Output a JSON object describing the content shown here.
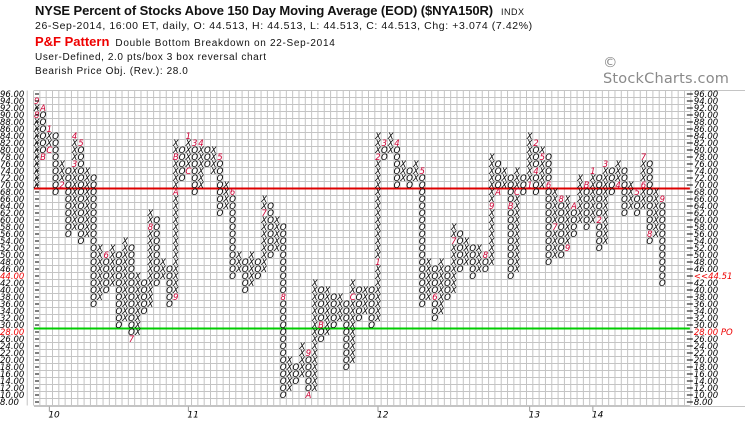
{
  "header": {
    "title": "NYSE Percent of Stocks Above 150 Day Moving Average (EOD) ($NYA150R)",
    "index_tag": "INDX",
    "ohlc_line": "26-Sep-2014, 16:00 ET, daily, O: 44.513, H: 44.513, L: 44.513, C: 44.513, Chg: +3.074 (7.42%)",
    "pattern_label": "P&F Pattern",
    "pattern_text": "Double Bottom Breakdown on 22-Sep-2014",
    "user_defined": "User-Defined, 2.0 pts/box 3 box reversal chart",
    "price_objective": "Bearish Price Obj. (Rev.): 28.0"
  },
  "watermark": "© StockCharts.com",
  "chart_data": {
    "type": "point-and-figure",
    "box_size": 2,
    "reversal": 3,
    "ylim": [
      8,
      96
    ],
    "y_tick_step": 2,
    "grid": true,
    "colors": {
      "x": "#000000",
      "o": "#000000",
      "month_label": "#cc0033",
      "grid": "#c4c4c4",
      "resistance_line": "#dd0000",
      "objective_line": "#00cc00",
      "annotation": "#ee0000"
    },
    "horizontal_lines": [
      {
        "value": 69,
        "color": "#dd0000"
      },
      {
        "value": 29,
        "color": "#00cc00"
      }
    ],
    "annotations": {
      "left": [
        {
          "value": 44,
          "text": "44.00"
        },
        {
          "value": 28,
          "text": "28.00"
        }
      ],
      "right": [
        {
          "value": 44.51,
          "text": "<<44.51"
        },
        {
          "value": 28,
          "text": "28.00 PO"
        }
      ]
    },
    "x_labels": [
      {
        "column": 2,
        "text": "10"
      },
      {
        "column": 24,
        "text": "11"
      },
      {
        "column": 54,
        "text": "12"
      },
      {
        "column": 78,
        "text": "13"
      },
      {
        "column": 88,
        "text": "14"
      }
    ],
    "columns": [
      [
        "X",
        70,
        94,
        {
          "94": "9",
          "90": "8"
        }
      ],
      [
        "O",
        78,
        92,
        {
          "92": "A",
          "78": "B"
        }
      ],
      [
        "X",
        80,
        86,
        {
          "80": "C",
          "86": "1"
        }
      ],
      [
        "O",
        68,
        84,
        {}
      ],
      [
        "X",
        70,
        76,
        {
          "70": "2"
        }
      ],
      [
        "O",
        56,
        74,
        {}
      ],
      [
        "X",
        58,
        84,
        {
          "76": "3",
          "84": "4"
        }
      ],
      [
        "O",
        54,
        82,
        {
          "82": "5"
        }
      ],
      [
        "X",
        56,
        74,
        {}
      ],
      [
        "O",
        36,
        72,
        {}
      ],
      [
        "X",
        38,
        52,
        {}
      ],
      [
        "O",
        40,
        50,
        {
          "50": "6"
        }
      ],
      [
        "X",
        42,
        52,
        {}
      ],
      [
        "O",
        30,
        50,
        {}
      ],
      [
        "X",
        32,
        54,
        {}
      ],
      [
        "O",
        26,
        52,
        {
          "26": "7"
        }
      ],
      [
        "X",
        28,
        44,
        {}
      ],
      [
        "O",
        34,
        42,
        {}
      ],
      [
        "X",
        36,
        62,
        {
          "58": "8"
        }
      ],
      [
        "O",
        42,
        60,
        {}
      ],
      [
        "X",
        44,
        48,
        {}
      ],
      [
        "O",
        36,
        46,
        {}
      ],
      [
        "X",
        38,
        82,
        {
          "38": "9",
          "68": "A",
          "78": "B"
        }
      ],
      [
        "O",
        72,
        80,
        {}
      ],
      [
        "X",
        74,
        84,
        {
          "74": "C",
          "84": "1"
        }
      ],
      [
        "O",
        68,
        82,
        {
          "82": "3"
        }
      ],
      [
        "X",
        70,
        82,
        {
          "82": "4"
        }
      ],
      [
        "O",
        76,
        80,
        {}
      ],
      [
        "X",
        74,
        80,
        {}
      ],
      [
        "O",
        62,
        78,
        {
          "78": "5"
        }
      ],
      [
        "X",
        64,
        70,
        {}
      ],
      [
        "O",
        44,
        68,
        {
          "68": "6"
        }
      ],
      [
        "X",
        46,
        50,
        {}
      ],
      [
        "O",
        40,
        48,
        {}
      ],
      [
        "X",
        42,
        50,
        {}
      ],
      [
        "O",
        44,
        48,
        {}
      ],
      [
        "X",
        46,
        66,
        {
          "62": "7"
        }
      ],
      [
        "O",
        50,
        64,
        {}
      ],
      [
        "X",
        52,
        60,
        {}
      ],
      [
        "O",
        10,
        58,
        {
          "38": "8"
        }
      ],
      [
        "X",
        12,
        20,
        {}
      ],
      [
        "O",
        14,
        18,
        {}
      ],
      [
        "X",
        16,
        24,
        {}
      ],
      [
        "O",
        10,
        22,
        {
          "22": "9",
          "10": "A"
        }
      ],
      [
        "X",
        12,
        42,
        {}
      ],
      [
        "O",
        26,
        40,
        {
          "30": "B"
        }
      ],
      [
        "X",
        28,
        40,
        {}
      ],
      [
        "O",
        30,
        38,
        {}
      ],
      [
        "X",
        32,
        38,
        {}
      ],
      [
        "O",
        18,
        36,
        {}
      ],
      [
        "X",
        20,
        42,
        {
          "38": "C"
        }
      ],
      [
        "O",
        32,
        40,
        {}
      ],
      [
        "X",
        34,
        40,
        {}
      ],
      [
        "O",
        30,
        40,
        {}
      ],
      [
        "X",
        32,
        84,
        {
          "48": "1",
          "78": "2"
        }
      ],
      [
        "O",
        78,
        82,
        {
          "82": "3"
        }
      ],
      [
        "X",
        80,
        84,
        {}
      ],
      [
        "O",
        70,
        82,
        {
          "82": "4"
        }
      ],
      [
        "X",
        72,
        76,
        {}
      ],
      [
        "O",
        70,
        74,
        {}
      ],
      [
        "X",
        72,
        76,
        {}
      ],
      [
        "O",
        36,
        74,
        {
          "74": "5"
        }
      ],
      [
        "X",
        38,
        48,
        {}
      ],
      [
        "O",
        32,
        46,
        {
          "38": "6"
        }
      ],
      [
        "X",
        34,
        48,
        {}
      ],
      [
        "O",
        38,
        46,
        {}
      ],
      [
        "X",
        40,
        58,
        {
          "54": "7"
        }
      ],
      [
        "O",
        46,
        56,
        {}
      ],
      [
        "X",
        48,
        54,
        {}
      ],
      [
        "O",
        44,
        52,
        {}
      ],
      [
        "X",
        46,
        52,
        {}
      ],
      [
        "O",
        46,
        50,
        {
          "50": "8"
        }
      ],
      [
        "X",
        48,
        78,
        {
          "64": "9"
        }
      ],
      [
        "O",
        68,
        76,
        {
          "68": "A"
        }
      ],
      [
        "X",
        70,
        74,
        {}
      ],
      [
        "O",
        44,
        72,
        {
          "64": "B"
        }
      ],
      [
        "X",
        46,
        74,
        {
          "68": "C"
        }
      ],
      [
        "O",
        68,
        72,
        {}
      ],
      [
        "X",
        70,
        84,
        {
          "70": "1"
        }
      ],
      [
        "O",
        68,
        82,
        {
          "82": "2",
          "74": "4"
        }
      ],
      [
        "X",
        70,
        80,
        {
          "78": "5"
        }
      ],
      [
        "O",
        48,
        78,
        {
          "70": "6"
        }
      ],
      [
        "X",
        50,
        68,
        {
          "58": "7"
        }
      ],
      [
        "O",
        50,
        66,
        {
          "66": "8"
        }
      ],
      [
        "X",
        52,
        66,
        {
          "52": "9"
        }
      ],
      [
        "O",
        56,
        64,
        {
          "64": "A"
        }
      ],
      [
        "X",
        60,
        72,
        {}
      ],
      [
        "O",
        58,
        70,
        {
          "70": "B"
        }
      ],
      [
        "X",
        60,
        74,
        {
          "74": "1"
        }
      ],
      [
        "O",
        52,
        72,
        {
          "60": "2"
        }
      ],
      [
        "X",
        54,
        76,
        {
          "76": "3"
        }
      ],
      [
        "O",
        68,
        74,
        {}
      ],
      [
        "X",
        70,
        76,
        {
          "70": "4"
        }
      ],
      [
        "O",
        62,
        74,
        {}
      ],
      [
        "X",
        64,
        70,
        {}
      ],
      [
        "O",
        62,
        68,
        {
          "68": "5"
        }
      ],
      [
        "X",
        64,
        78,
        {
          "70": "6",
          "78": "7"
        }
      ],
      [
        "O",
        54,
        76,
        {
          "56": "8"
        }
      ],
      [
        "X",
        56,
        68,
        {}
      ],
      [
        "O",
        42,
        66,
        {
          "66": "9"
        }
      ]
    ]
  }
}
